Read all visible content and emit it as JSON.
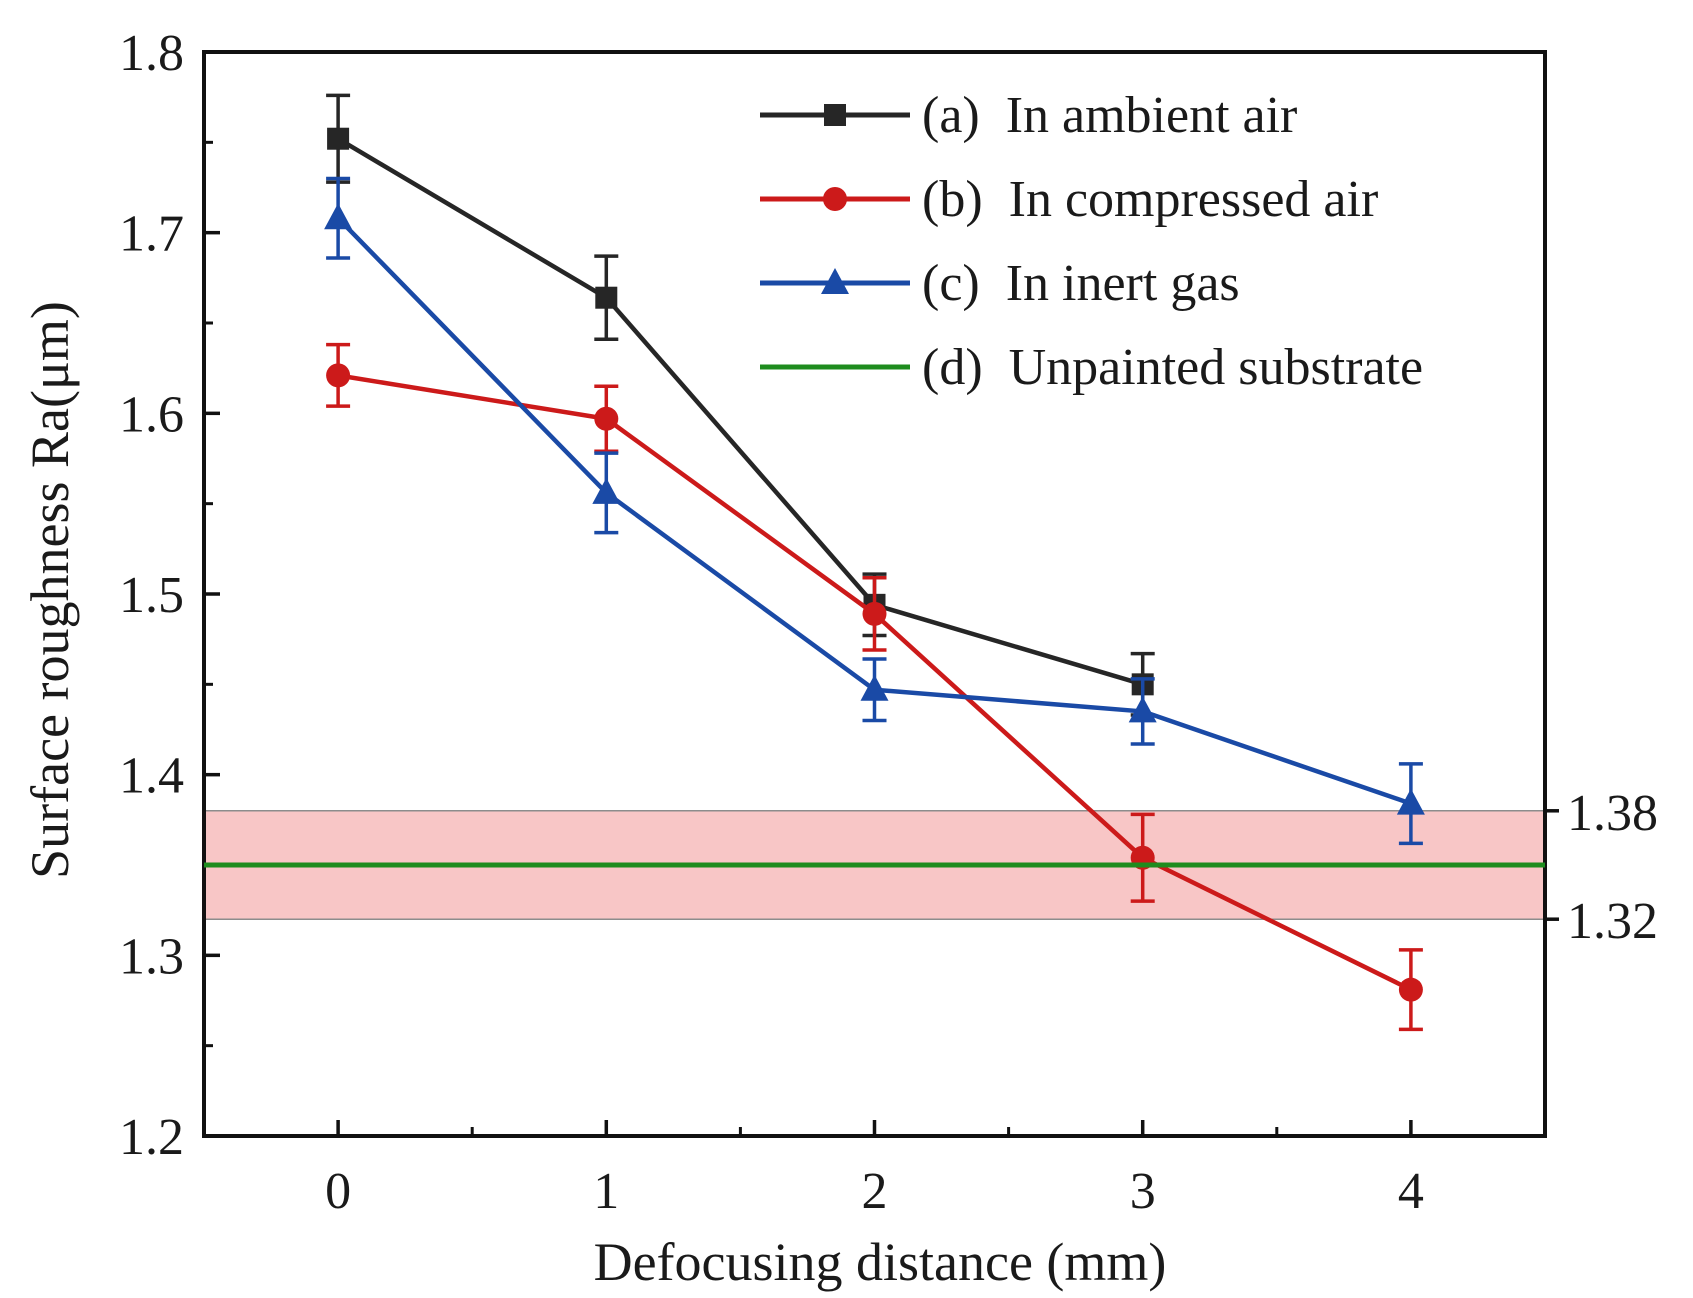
{
  "chart_data": {
    "type": "line",
    "title": "",
    "xlabel": "Defocusing distance (mm)",
    "ylabel": "Surface roughness Ra(μm)",
    "x": [
      0,
      1,
      2,
      3,
      4
    ],
    "xlim": [
      -0.5,
      4.5
    ],
    "ylim": [
      1.2,
      1.8
    ],
    "x_ticks": [
      0,
      1,
      2,
      3,
      4
    ],
    "y_ticks": [
      1.2,
      1.3,
      1.4,
      1.5,
      1.6,
      1.7,
      1.8
    ],
    "x_tick_labels": [
      "0",
      "1",
      "2",
      "3",
      "4"
    ],
    "y_tick_labels": [
      "1.2",
      "1.3",
      "1.4",
      "1.5",
      "1.6",
      "1.7",
      "1.8"
    ],
    "grid": false,
    "legend_position": "top-right",
    "series": [
      {
        "name": "(a)  In ambient air",
        "marker": "square",
        "color": "#262626",
        "values": [
          1.752,
          1.664,
          1.494,
          1.45,
          null
        ],
        "errors": [
          0.024,
          0.023,
          0.017,
          0.017,
          null
        ]
      },
      {
        "name": "(b)  In compressed air",
        "marker": "circle",
        "color": "#cc1a1a",
        "values": [
          1.621,
          1.597,
          1.489,
          1.354,
          1.281
        ],
        "errors": [
          0.017,
          0.018,
          0.02,
          0.024,
          0.022
        ]
      },
      {
        "name": "(c)  In inert gas",
        "marker": "triangle",
        "color": "#1a4aa6",
        "values": [
          1.708,
          1.556,
          1.447,
          1.435,
          1.384
        ],
        "errors": [
          0.022,
          0.022,
          0.017,
          0.018,
          0.022
        ]
      },
      {
        "name": "(d)  Unpainted substrate",
        "marker": "none",
        "color": "#1e8c1e",
        "constant": 1.35
      }
    ],
    "band": {
      "lower": 1.32,
      "upper": 1.38,
      "lower_label": "1.32",
      "upper_label": "1.38",
      "fill": "#f8c6c6",
      "edge": "#8c8c8c"
    }
  }
}
